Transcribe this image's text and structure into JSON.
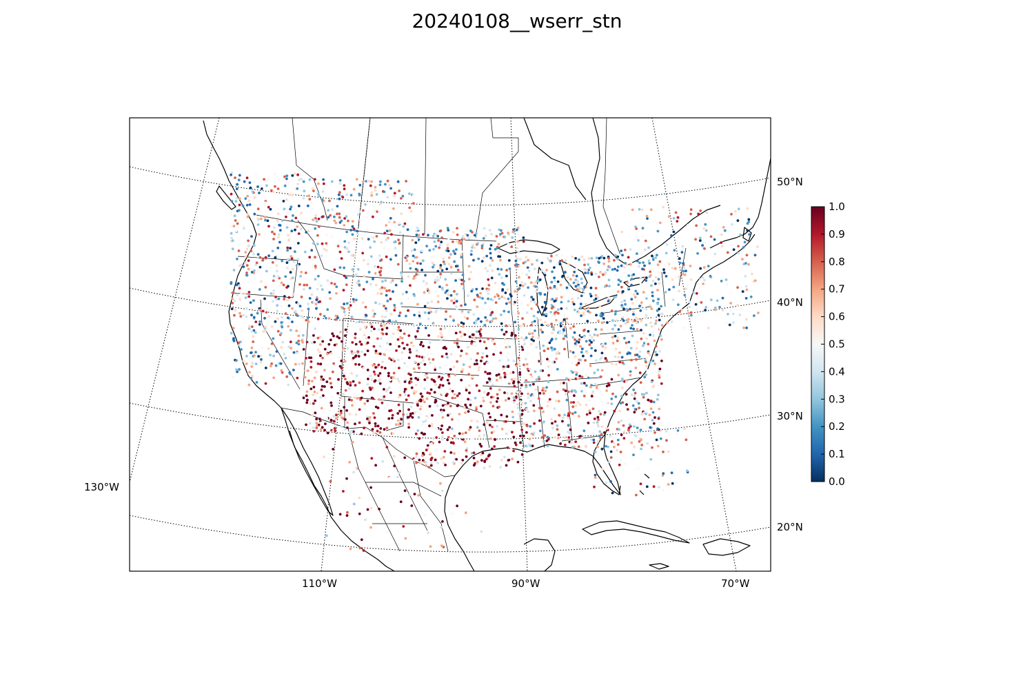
{
  "title": "20240108__wserr_stn",
  "colorscale": {
    "name": "RdBu_r",
    "min": 0.0,
    "max": 1.0,
    "ticks": [
      "0.0",
      "0.1",
      "0.2",
      "0.3",
      "0.4",
      "0.5",
      "0.6",
      "0.7",
      "0.8",
      "0.9",
      "1.0"
    ],
    "stops": [
      "#053061",
      "#2166ac",
      "#4393c3",
      "#92c5de",
      "#d1e5f0",
      "#f7f7f7",
      "#fddbc7",
      "#f4a582",
      "#d6604d",
      "#b2182b",
      "#67001f"
    ]
  },
  "graticule": {
    "lat_labels": [
      "50°N",
      "40°N",
      "30°N",
      "20°N"
    ],
    "lon_labels": [
      "130°W",
      "110°W",
      "90°W",
      "70°W"
    ]
  },
  "stations_summary": {
    "variable": "wserr_stn",
    "date": "20240108"
  }
}
